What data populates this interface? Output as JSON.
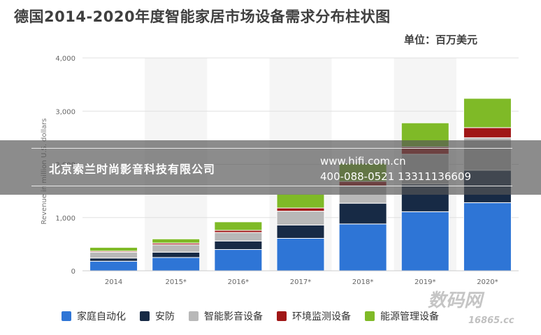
{
  "title": "德国2014-2020年度智能家居市场设备需求分布柱状图",
  "unit": "单位：百万美元",
  "watermark": {
    "company": "北京索兰时尚影音科技有限公司",
    "url": "www.hifi.com.cn",
    "phone": "400-088-0521 13311136609",
    "site_mark": "数码网",
    "site_mark_2": "16865.cc"
  },
  "chart_data": {
    "type": "bar",
    "stacked": true,
    "title": "德国2014-2020年度智能家居市场设备需求分布柱状图",
    "ylabel": "Revenue in million U.S. dollars",
    "categories": [
      "2014",
      "2015*",
      "2016*",
      "2017*",
      "2018*",
      "2019*",
      "2020*"
    ],
    "ylim": [
      0,
      4000
    ],
    "yticks": [
      0,
      1000,
      2000,
      3000,
      4000
    ],
    "ytick_labels": [
      "0",
      "1,000",
      "2,000",
      "3,000",
      "4,000"
    ],
    "grid": true,
    "legend_position": "bottom",
    "series": [
      {
        "name": "家庭自动化",
        "color": "#2e75d6",
        "values": [
          180,
          250,
          400,
          610,
          880,
          1110,
          1280
        ]
      },
      {
        "name": "安防",
        "color": "#172a45",
        "values": [
          60,
          100,
          160,
          250,
          390,
          520,
          610
        ]
      },
      {
        "name": "智能影音设备",
        "color": "#b8b8b8",
        "values": [
          110,
          140,
          160,
          260,
          320,
          560,
          610
        ]
      },
      {
        "name": "环境监测设备",
        "color": "#a01616",
        "values": [
          20,
          30,
          40,
          60,
          90,
          140,
          190
        ]
      },
      {
        "name": "能源管理设备",
        "color": "#7fba27",
        "values": [
          70,
          80,
          160,
          260,
          340,
          450,
          550
        ]
      }
    ]
  }
}
